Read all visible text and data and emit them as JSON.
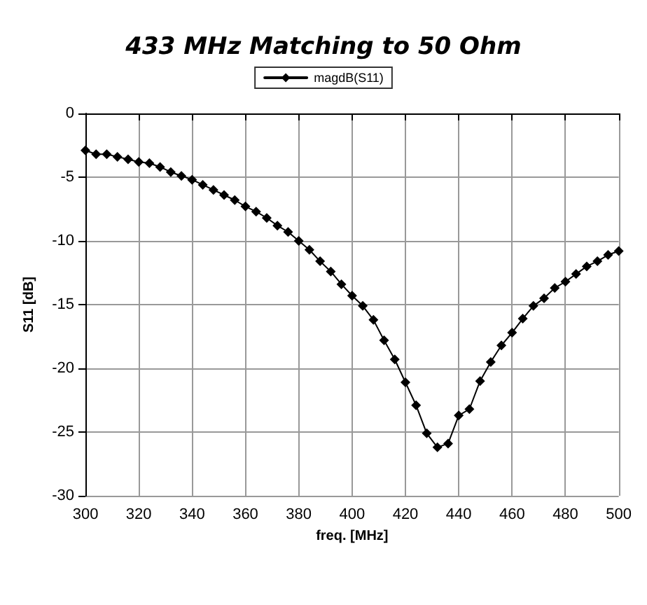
{
  "chart_data": {
    "type": "line",
    "title": "433 MHz Matching to 50 Ohm",
    "xlabel": "freq. [MHz]",
    "ylabel": "S11 [dB]",
    "x": [
      300,
      304,
      308,
      312,
      316,
      320,
      324,
      328,
      332,
      336,
      340,
      344,
      348,
      352,
      356,
      360,
      364,
      368,
      372,
      376,
      380,
      384,
      388,
      392,
      396,
      400,
      404,
      408,
      412,
      416,
      420,
      424,
      428,
      432,
      436,
      440,
      444,
      448,
      452,
      456,
      460,
      464,
      468,
      472,
      476,
      480,
      484,
      488,
      492,
      496,
      500
    ],
    "series": [
      {
        "name": "magdB(S11)",
        "color": "#000000",
        "values": [
          -2.9,
          -3.2,
          -3.2,
          -3.4,
          -3.6,
          -3.8,
          -3.9,
          -4.2,
          -4.6,
          -4.9,
          -5.2,
          -5.6,
          -6.0,
          -6.4,
          -6.8,
          -7.3,
          -7.7,
          -8.2,
          -8.8,
          -9.3,
          -10.0,
          -10.7,
          -11.6,
          -12.4,
          -13.4,
          -14.3,
          -15.1,
          -16.2,
          -17.8,
          -19.3,
          -21.1,
          -22.9,
          -25.1,
          -26.2,
          -25.9,
          -23.7,
          -23.2,
          -21.0,
          -19.5,
          -18.2,
          -17.2,
          -16.1,
          -15.1,
          -14.5,
          -13.7,
          -13.2,
          -12.6,
          -12.0,
          -11.6,
          -11.1,
          -10.8
        ]
      }
    ],
    "xlim": [
      300,
      500
    ],
    "xticks": [
      300,
      320,
      340,
      360,
      380,
      400,
      420,
      440,
      460,
      480,
      500
    ],
    "ylim": [
      -30,
      0
    ],
    "yticks": [
      -30,
      -25,
      -20,
      -15,
      -10,
      -5,
      0
    ],
    "grid": true,
    "legend": "top",
    "marker": "diamond",
    "line_style": "solid"
  }
}
